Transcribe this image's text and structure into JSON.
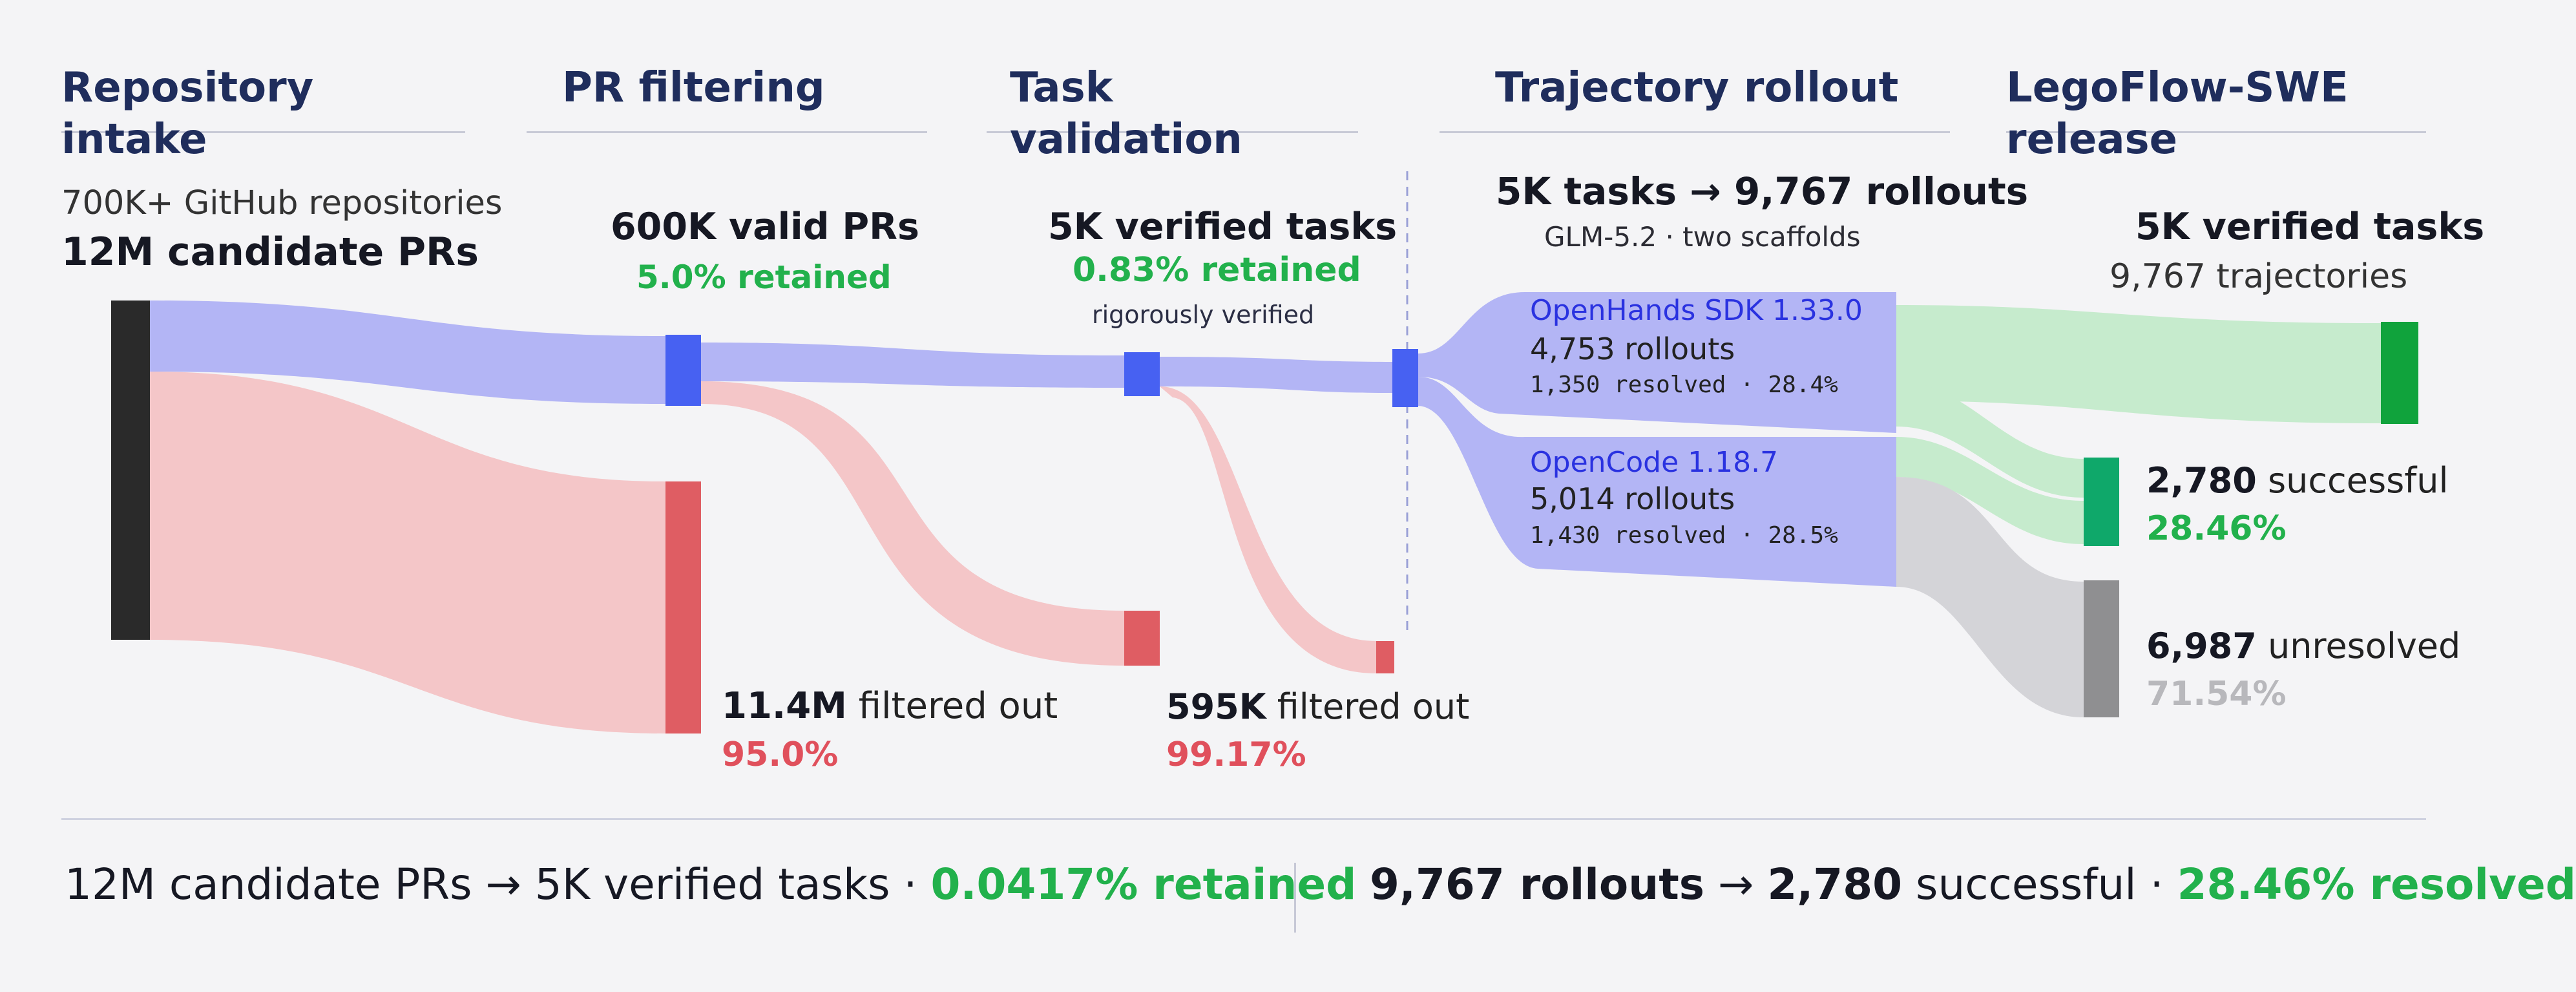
{
  "headers": {
    "repo": "Repository intake",
    "pr": "PR filtering",
    "task": "Task validation",
    "traj": "Trajectory rollout",
    "release": "LegoFlow-SWE release"
  },
  "intake": {
    "line1": "700K+ GitHub repositories",
    "line2": "12M candidate PRs"
  },
  "pr": {
    "valid": "600K valid PRs",
    "retained": "5.0% retained",
    "filtered_value": "11.4M",
    "filtered_text": "filtered out",
    "filtered_pct": "95.0%"
  },
  "task": {
    "verified": "5K verified tasks",
    "retained": "0.83% retained",
    "note": "rigorously verified",
    "filtered_value": "595K",
    "filtered_text": "filtered out",
    "filtered_pct": "99.17%"
  },
  "rollout": {
    "title": "5K tasks → 9,767 rollouts",
    "subtitle": "GLM-5.2 · two scaffolds",
    "openhands": {
      "name": "OpenHands SDK 1.33.0",
      "rollouts": "4,753 rollouts",
      "resolved": "1,350 resolved · 28.4%"
    },
    "opencode": {
      "name": "OpenCode 1.18.7",
      "rollouts": "5,014 rollouts",
      "resolved": "1,430 resolved · 28.5%"
    }
  },
  "release": {
    "tasks": "5K verified tasks",
    "trajectories": "9,767 trajectories",
    "successful_value": "2,780",
    "successful_text": "successful",
    "successful_pct": "28.46%",
    "unresolved_value": "6,987",
    "unresolved_text": "unresolved",
    "unresolved_pct": "71.54%"
  },
  "summary": {
    "left_main": "12M candidate PRs → 5K verified tasks",
    "left_sep": " · ",
    "left_pct": "0.0417% retained",
    "right_rollouts": "9,767 rollouts",
    "right_arrow": " → ",
    "right_value": "2,780",
    "right_text": " successful",
    "right_sep": " · ",
    "right_pct": "28.46% resolved"
  },
  "colors": {
    "flow_blue": "#b3b5f5",
    "flow_red": "#f4c6c8",
    "flow_green": "#c6ebcd",
    "flow_gray": "#d4d4d8",
    "node_black": "#2a2a2a",
    "node_blue": "#4761f2",
    "node_red": "#df5d63",
    "node_green": "#10a33c",
    "node_teal": "#0fa86a",
    "node_gray": "#8f8f91"
  }
}
